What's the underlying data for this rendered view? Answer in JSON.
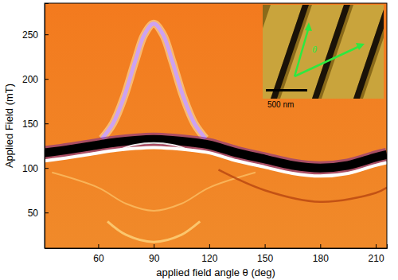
{
  "chart_data": {
    "type": "line",
    "x_label": "applied field angle θ (deg)",
    "y_label": "Applied Field (mT)",
    "xlim": [
      31,
      216
    ],
    "ylim": [
      10,
      285
    ],
    "xticks": [
      60,
      90,
      120,
      150,
      180,
      210
    ],
    "yticks": [
      50,
      100,
      150,
      200,
      250
    ],
    "annotations": [
      "500 nm",
      "θ"
    ],
    "series": [
      {
        "color": "#c8a0ff",
        "line_style": "solid",
        "x": [
          62,
          68,
          74,
          80,
          85,
          90,
          95,
          100,
          106,
          112,
          118
        ],
        "values": [
          133,
          150,
          180,
          220,
          250,
          262,
          250,
          220,
          180,
          150,
          133
        ]
      },
      {
        "color": "#000000",
        "line_style": "solid",
        "x": [
          31,
          45,
          60,
          70,
          80,
          90,
          100,
          110,
          120,
          135,
          150,
          165,
          180,
          195,
          210,
          216
        ],
        "values": [
          117,
          121,
          126,
          129,
          131,
          132,
          131,
          129,
          126,
          117,
          110,
          103,
          100,
          103,
          112,
          115
        ]
      },
      {
        "color": "#ffffff",
        "line_style": "solid",
        "x": [
          31,
          45,
          60,
          70,
          80,
          90,
          100,
          110,
          120,
          135,
          150,
          165,
          180,
          195,
          210,
          216
        ],
        "values": [
          108,
          112,
          117,
          120,
          122,
          123,
          122,
          120,
          117,
          108,
          101,
          94,
          91,
          94,
          103,
          106
        ]
      },
      {
        "color": "#ffffff",
        "line_style": "solid",
        "x": [
          72,
          80,
          90,
          100,
          108
        ],
        "values": [
          121,
          126,
          128,
          126,
          121
        ]
      },
      {
        "color": "#ffd27a",
        "line_style": "solid",
        "x": [
          35,
          60,
          75,
          90,
          105,
          120,
          145
        ],
        "values": [
          95,
          78,
          60,
          52,
          60,
          78,
          95
        ]
      },
      {
        "color": "#ffe08a",
        "line_style": "solid",
        "x": [
          65,
          75,
          90,
          105,
          115
        ],
        "values": [
          40,
          25,
          17,
          25,
          40
        ]
      },
      {
        "color": "#b84510",
        "line_style": "solid",
        "x": [
          125,
          150,
          180,
          210,
          216
        ],
        "values": [
          98,
          75,
          62,
          72,
          78
        ]
      }
    ]
  }
}
